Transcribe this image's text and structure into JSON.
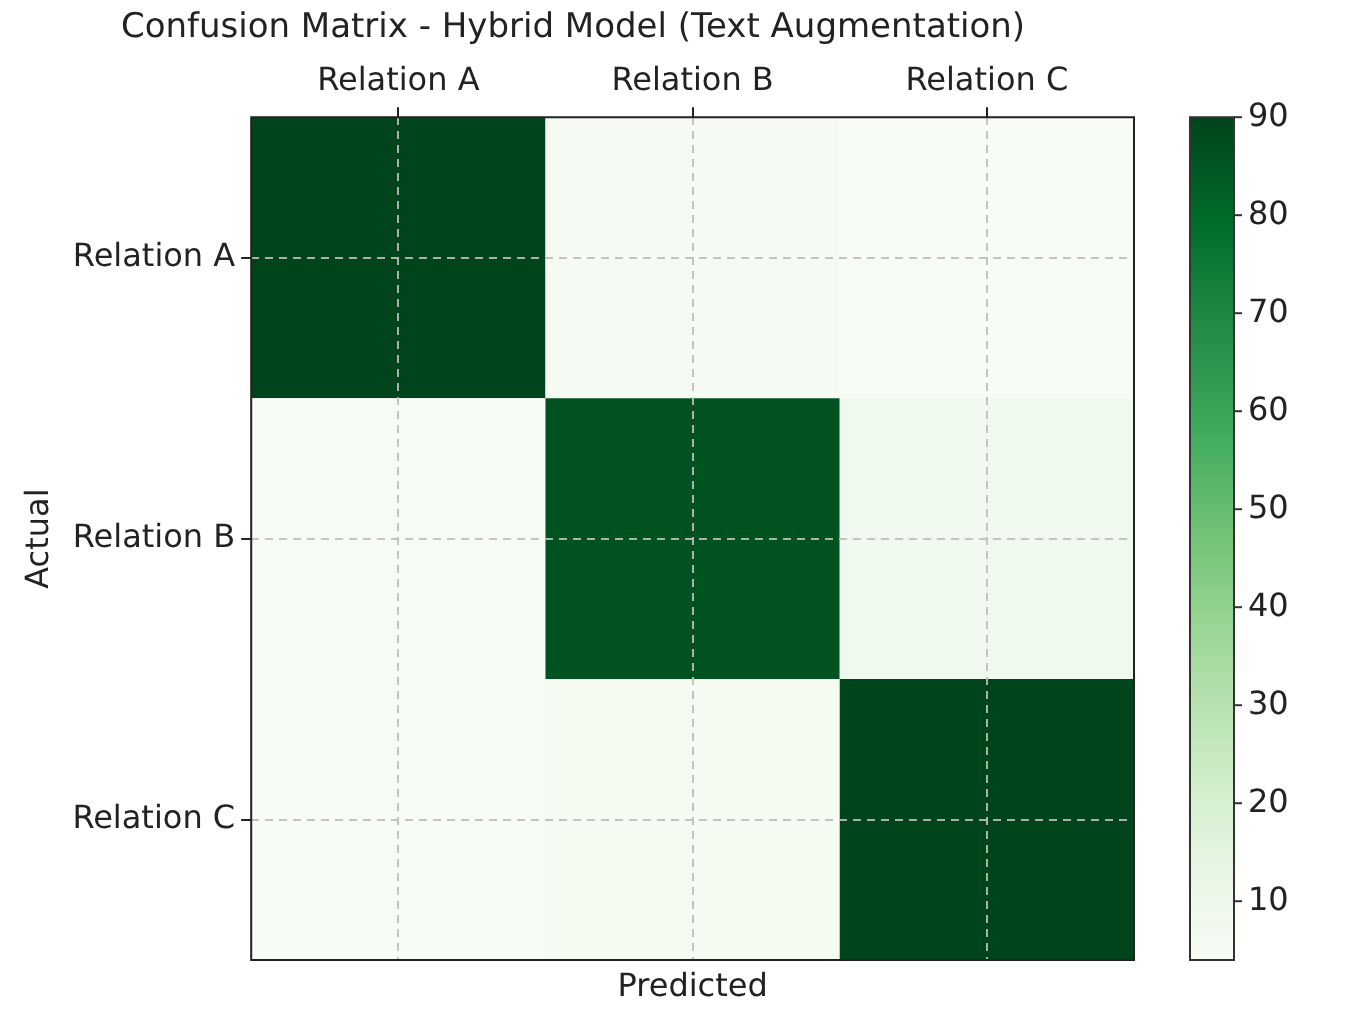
{
  "chart_data": {
    "type": "heatmap",
    "title": "Confusion Matrix - Hybrid Model (Text Augmentation)",
    "xlabel": "Predicted",
    "ylabel": "Actual",
    "categories": [
      "Relation A",
      "Relation B",
      "Relation C"
    ],
    "y_categories": [
      "Relation A",
      "Relation B",
      "Relation C"
    ],
    "cells": [
      [
        90,
        5,
        4
      ],
      [
        4,
        86,
        8
      ],
      [
        4,
        6,
        90
      ]
    ],
    "clim": [
      4,
      90
    ],
    "cticks": [
      10,
      20,
      30,
      40,
      50,
      60,
      70,
      80,
      90
    ],
    "grid": true
  }
}
